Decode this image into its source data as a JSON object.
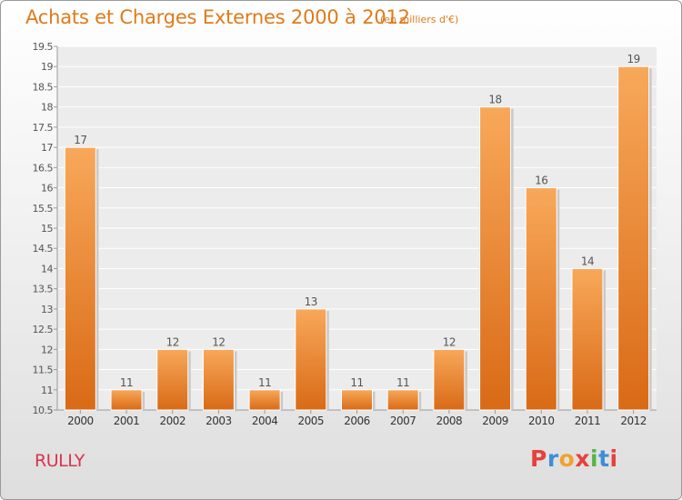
{
  "title": "Achats et Charges Externes 2000 à 2012",
  "subtitle": "(en milliers d'€)",
  "commune": "RULLY",
  "logo": {
    "letters": [
      "P",
      "r",
      "o",
      "x",
      "i",
      "t",
      "i"
    ],
    "colors": [
      "#e8403a",
      "#3d8ed8",
      "#f0a22c",
      "#e8403a",
      "#56b548",
      "#3d8ed8",
      "#e8403a"
    ]
  },
  "colors": {
    "bar": "#f08a30",
    "accent": "#e07a1a",
    "commune": "#d9334e"
  },
  "chart_data": {
    "type": "bar",
    "title": "Achats et Charges Externes 2000 à 2012",
    "subtitle": "(en milliers d'€)",
    "categories": [
      "2000",
      "2001",
      "2002",
      "2003",
      "2004",
      "2005",
      "2006",
      "2007",
      "2008",
      "2009",
      "2010",
      "2011",
      "2012"
    ],
    "values": [
      17,
      11,
      12,
      12,
      11,
      13,
      11,
      11,
      12,
      18,
      16,
      14,
      19
    ],
    "data_labels": [
      "17",
      "11",
      "12",
      "12",
      "11",
      "13",
      "11",
      "11",
      "12",
      "18",
      "16",
      "14",
      "19"
    ],
    "ylim": [
      10.5,
      19.5
    ],
    "yticks": [
      "10.5",
      "11",
      "11.5",
      "12",
      "12.5",
      "13",
      "13.5",
      "14",
      "14.5",
      "15",
      "15.5",
      "16",
      "16.5",
      "17",
      "17.5",
      "18",
      "18.5",
      "19",
      "19.5"
    ],
    "grid": true,
    "xlabel": "",
    "ylabel": ""
  }
}
